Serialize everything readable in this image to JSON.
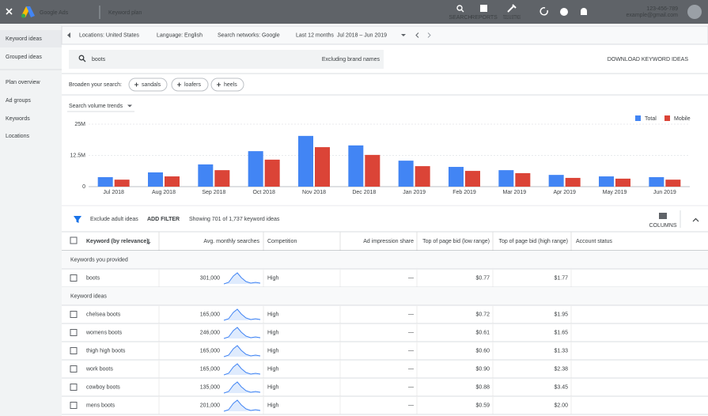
{
  "header": {
    "product": "Google Ads",
    "page": "Keyword plan",
    "icons": [
      "SEARCH",
      "REPORTS",
      "TOOLS & SETTINGS"
    ],
    "account_id": "123-456-789",
    "email": "example@gmail.com"
  },
  "sidebar": [
    "Keyword ideas",
    "Grouped ideas",
    "Plan overview",
    "Ad groups",
    "Keywords",
    "Locations"
  ],
  "filters": {
    "locations": "Locations: United States",
    "language": "Language: English",
    "networks": "Search networks: Google",
    "period_label": "Last 12 months",
    "period": "Jul 2018 – Jun 2019"
  },
  "search": {
    "query": "boots",
    "exclusion": "Excluding brand names",
    "download": "DOWNLOAD KEYWORD IDEAS"
  },
  "broaden": {
    "label": "Broaden your search:",
    "chips": [
      "sandals",
      "loafers",
      "heels"
    ]
  },
  "chart_data": {
    "type": "bar",
    "title": "Search volume trends",
    "categories": [
      "Jul 2018",
      "Aug 2018",
      "Sep 2018",
      "Oct 2018",
      "Nov 2018",
      "Dec 2018",
      "Jan 2019",
      "Feb 2019",
      "Mar 2019",
      "Apr 2019",
      "May 2019",
      "Jun 2019"
    ],
    "series": [
      {
        "name": "Total",
        "color": "#4285f4",
        "values": [
          3800000,
          5700000,
          8900000,
          14200000,
          20300000,
          16500000,
          10400000,
          7900000,
          6600000,
          4700000,
          4100000,
          3800000
        ]
      },
      {
        "name": "Mobile",
        "color": "#db4437",
        "values": [
          2800000,
          4100000,
          6600000,
          10800000,
          15800000,
          12700000,
          8200000,
          6300000,
          5400000,
          3500000,
          3200000,
          2800000
        ]
      }
    ],
    "ylim": [
      0,
      25000000
    ],
    "yticks": [
      0,
      {
        "value": 12500000,
        "label": "12.5M"
      },
      {
        "value": 25000000,
        "label": "25M"
      }
    ],
    "grid": true,
    "legend": "top-right"
  },
  "toolbar": {
    "filter": "Exclude adult ideas",
    "add": "ADD FILTER",
    "count": "Showing 701 of 1,737 keyword ideas",
    "columns": "COLUMNS"
  },
  "table": {
    "columns": [
      "Keyword (by relevance)",
      "Avg. monthly searches",
      "Competition",
      "Ad impression share",
      "Top of page bid (low range)",
      "Top of page bid (high range)",
      "Account status"
    ],
    "groups": [
      {
        "title": "Keywords you provided",
        "rows": [
          [
            "boots",
            "301,000",
            "High",
            "—",
            "$0.77",
            "$1.77"
          ]
        ]
      },
      {
        "title": "Keyword ideas",
        "rows": [
          [
            "chelsea boots",
            "165,000",
            "High",
            "—",
            "$0.72",
            "$1.95"
          ],
          [
            "womens boots",
            "246,000",
            "High",
            "—",
            "$0.61",
            "$1.65"
          ],
          [
            "thigh high boots",
            "165,000",
            "High",
            "—",
            "$0.60",
            "$1.33"
          ],
          [
            "work boots",
            "165,000",
            "High",
            "—",
            "$0.90",
            "$2.38"
          ],
          [
            "cowboy boots",
            "135,000",
            "High",
            "—",
            "$0.88",
            "$3.45"
          ],
          [
            "mens boots",
            "201,000",
            "High",
            "—",
            "$0.59",
            "$2.00"
          ]
        ]
      }
    ]
  }
}
